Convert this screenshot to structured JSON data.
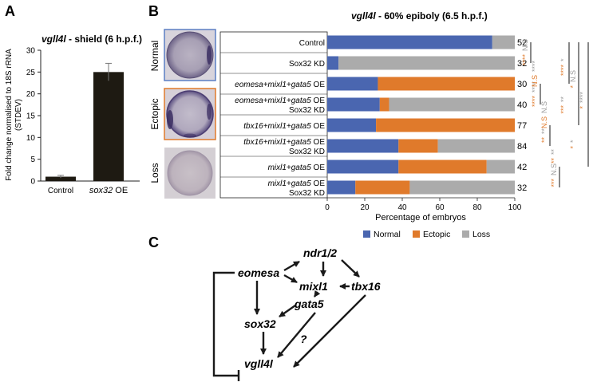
{
  "panelA": {
    "letter": "A",
    "title_gene": "vgll4l",
    "title_rest": " - shield (6 h.p.f.)",
    "ylabel_line1": "Fold change normalised to 18S rRNA",
    "ylabel_line2": "(STDEV)",
    "yticks": [
      "0",
      "5",
      "10",
      "15",
      "20",
      "25",
      "30"
    ],
    "categories": [
      {
        "label": "Control",
        "italic": false
      },
      {
        "label": "sox32",
        "suffix": " OE",
        "italic": true
      }
    ]
  },
  "panelB": {
    "letter": "B",
    "title_gene": "vgll4l",
    "title_rest": " - 60% epiboly (6.5 h.p.f.)",
    "embryo_labels": [
      "Normal",
      "Ectopic",
      "Loss"
    ],
    "xlabel": "Percentage of embryos",
    "xticks": [
      "0",
      "20",
      "40",
      "60",
      "80",
      "100"
    ],
    "legend": [
      "Normal",
      "Ectopic",
      "Loss"
    ],
    "rows": [
      {
        "line1": "Control",
        "line2": "",
        "italic": false,
        "n": "52"
      },
      {
        "line1": "Sox32 KD",
        "line2": "",
        "italic": false,
        "n": "32"
      },
      {
        "line1": "eomesa+mixl1+gata5",
        "line1_suffix": " OE",
        "line2": "",
        "italic": true,
        "n": "30"
      },
      {
        "line1": "eomesa+mixl1+gata5",
        "line1_suffix": " OE",
        "line2": "Sox32 KD",
        "italic": true,
        "n": "40"
      },
      {
        "line1": "tbx16+mixl1+gata5",
        "line1_suffix": " OE",
        "line2": "",
        "italic": true,
        "n": "77"
      },
      {
        "line1": "tbx16+mixl1+gata5",
        "line1_suffix": " OE",
        "line2": "Sox32 KD",
        "italic": true,
        "n": "84"
      },
      {
        "line1": "mixl1+gata5",
        "line1_suffix": " OE",
        "line2": "",
        "italic": true,
        "n": "42"
      },
      {
        "line1": "mixl1+gata5",
        "line1_suffix": " OE",
        "line2": "Sox32 KD",
        "italic": true,
        "n": "32"
      }
    ],
    "significance": {
      "orange": [
        "****",
        "****",
        "**",
        "***",
        "****",
        "*",
        "*",
        "N.S",
        "N.S",
        "**",
        "***",
        "*"
      ],
      "grey": [
        "N.S",
        "****",
        "**",
        "N.S",
        "*",
        "N.S",
        "****",
        "****",
        "N.S",
        "**",
        "**",
        "*"
      ]
    }
  },
  "panelC": {
    "letter": "C",
    "nodes": {
      "eomesa": "eomesa",
      "ndr12": "ndr1/2",
      "mixl1": "mixl1",
      "tbx16": "tbx16",
      "gata5": "gata5",
      "sox32": "sox32",
      "vgll4l": "vgll4l",
      "question": "?"
    }
  },
  "colors": {
    "normal": "#4a66b0",
    "ectopic": "#e07a2b",
    "loss": "#ababab",
    "barA": "#1e1a12",
    "orangeFrame": "#e07a2b",
    "blueFrame": "#5b7fc4"
  },
  "chart_data": [
    {
      "type": "bar",
      "title": "vgll4l - shield (6 h.p.f.)",
      "xlabel": "",
      "ylabel": "Fold change normalised to 18S rRNA (STDEV)",
      "categories": [
        "Control",
        "sox32 OE"
      ],
      "values": [
        1,
        25
      ],
      "errors": [
        0.3,
        2
      ],
      "ylim": [
        0,
        30
      ],
      "grid": false
    },
    {
      "type": "bar",
      "orientation": "horizontal",
      "stacked": true,
      "title": "vgll4l - 60% epiboly (6.5 h.p.f.)",
      "xlabel": "Percentage of embryos",
      "ylabel": "",
      "xlim": [
        0,
        100
      ],
      "legend": "bottom",
      "grid": false,
      "categories": [
        "Control",
        "Sox32 KD",
        "eomesa+mixl1+gata5 OE",
        "eomesa+mixl1+gata5 OE Sox32 KD",
        "tbx16+mixl1+gata5 OE",
        "tbx16+mixl1+gata5 OE Sox32 KD",
        "mixl1+gata5 OE",
        "mixl1+gata5 OE Sox32 KD"
      ],
      "n": [
        52,
        32,
        30,
        40,
        77,
        84,
        42,
        32
      ],
      "series": [
        {
          "name": "Normal",
          "values": [
            88,
            6,
            27,
            28,
            26,
            38,
            38,
            15
          ]
        },
        {
          "name": "Ectopic",
          "values": [
            0,
            0,
            73,
            5,
            74,
            21,
            47,
            29
          ]
        },
        {
          "name": "Loss",
          "values": [
            12,
            94,
            0,
            67,
            0,
            41,
            15,
            56
          ]
        }
      ]
    }
  ]
}
